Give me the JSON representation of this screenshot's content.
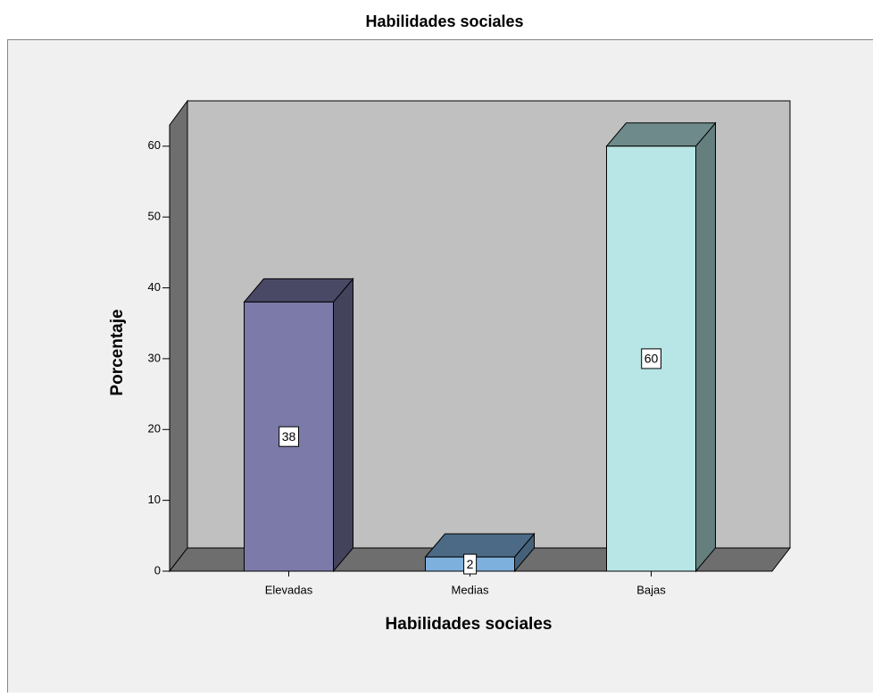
{
  "chart_data": {
    "type": "bar3d",
    "title": "Habilidades sociales",
    "x_label": "Habilidades sociales",
    "y_label": "Porcentaje",
    "categories": [
      "Elevadas",
      "Medias",
      "Bajas"
    ],
    "values": [
      38,
      2,
      60
    ],
    "colors": [
      "#7b7aa8",
      "#7eb0de",
      "#b8e6e7"
    ],
    "ylim": [
      0,
      63
    ],
    "yticks": [
      0,
      10,
      20,
      30,
      40,
      50,
      60
    ]
  }
}
